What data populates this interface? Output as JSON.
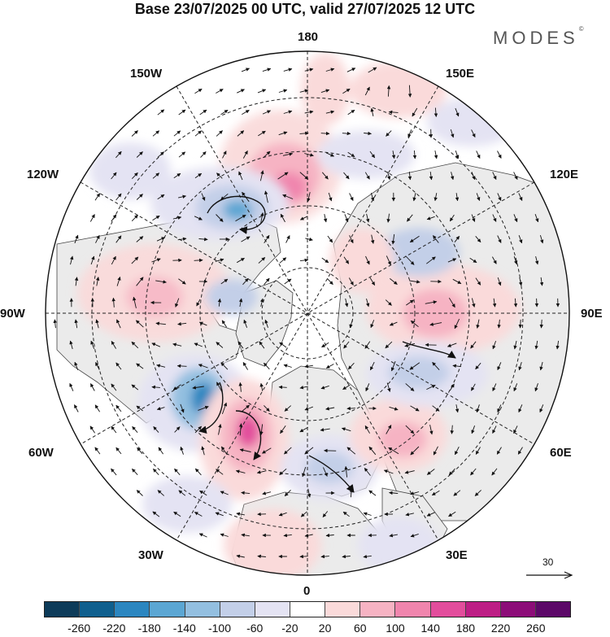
{
  "title": "Base 23/07/2025 00 UTC, valid 27/07/2025 12 UTC",
  "brand": "MODES",
  "brand_mark": "©",
  "longitude_labels": {
    "lon_180": "180",
    "lon_150e": "150E",
    "lon_120e": "120E",
    "lon_90e": "90E",
    "lon_60e": "60E",
    "lon_30e": "30E",
    "lon_0": "0",
    "lon_30w": "30W",
    "lon_60w": "60W",
    "lon_90w": "90W",
    "lon_120w": "120W",
    "lon_150w": "150W"
  },
  "vector_scale": {
    "label": "30"
  },
  "colorbar": {
    "colors": [
      "#0d3b59",
      "#0f5f8e",
      "#2b86c0",
      "#5ba6d3",
      "#93bfe0",
      "#c3cfe8",
      "#e4e3f3",
      "#ffffff",
      "#fadada",
      "#f6b3c3",
      "#f085ad",
      "#e24d9c",
      "#bd1e85",
      "#8c0c78",
      "#5c0868"
    ],
    "ticks": [
      "-260",
      "-220",
      "-180",
      "-140",
      "-100",
      "-60",
      "-20",
      "20",
      "60",
      "100",
      "140",
      "180",
      "220",
      "260"
    ]
  },
  "anomaly_centers": [
    {
      "name": "pacific-positive",
      "sign": "positive",
      "value": 160
    },
    {
      "name": "alaska-negative",
      "sign": "negative",
      "value": -150
    },
    {
      "name": "canada-positive",
      "sign": "positive",
      "value": 60
    },
    {
      "name": "hudson-negative",
      "sign": "negative",
      "value": -60
    },
    {
      "name": "labrador-negative",
      "sign": "negative",
      "value": -170
    },
    {
      "name": "north-atlantic-positive",
      "sign": "positive",
      "value": 170
    },
    {
      "name": "europe-negative",
      "sign": "negative",
      "value": -60
    },
    {
      "name": "west-asia-positive",
      "sign": "positive",
      "value": 70
    },
    {
      "name": "siberia-positive",
      "sign": "positive",
      "value": 90
    },
    {
      "name": "central-asia-negative",
      "sign": "negative",
      "value": -60
    },
    {
      "name": "east-siberia-negative",
      "sign": "negative",
      "value": -60
    },
    {
      "name": "kamchatka-positive",
      "sign": "positive",
      "value": 50
    }
  ]
}
